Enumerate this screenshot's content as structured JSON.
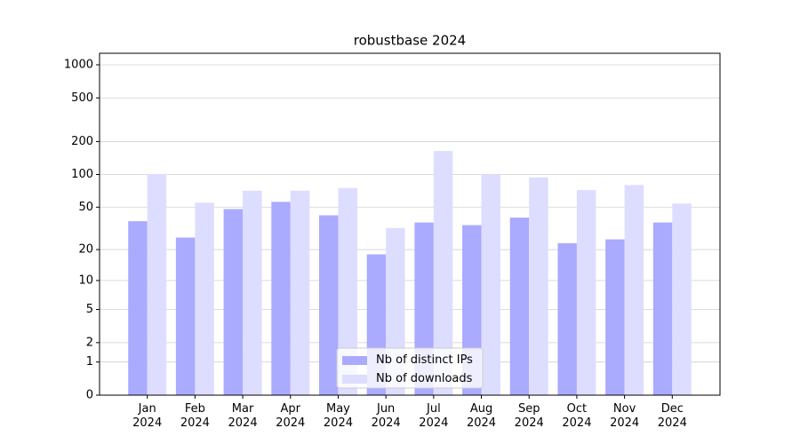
{
  "chart_data": {
    "type": "bar",
    "title": "robustbase 2024",
    "categories": [
      "Jan\n2024",
      "Feb\n2024",
      "Mar\n2024",
      "Apr\n2024",
      "May\n2024",
      "Jun\n2024",
      "Jul\n2024",
      "Aug\n2024",
      "Sep\n2024",
      "Oct\n2024",
      "Nov\n2024",
      "Dec\n2024"
    ],
    "series": [
      {
        "name": "Nb of distinct IPs",
        "color": "#aaaaff",
        "values": [
          37,
          26,
          48,
          56,
          42,
          18,
          36,
          34,
          40,
          23,
          25,
          36
        ]
      },
      {
        "name": "Nb of downloads",
        "color": "#ddddff",
        "values": [
          101,
          55,
          71,
          71,
          75,
          32,
          164,
          100,
          94,
          72,
          80,
          54
        ]
      }
    ],
    "yscale": "log1p",
    "ylim": [
      0,
      1273
    ],
    "yticks": [
      0,
      1,
      2,
      5,
      10,
      20,
      50,
      100,
      200,
      500,
      1000
    ],
    "grid": true,
    "legend": "lower center"
  }
}
